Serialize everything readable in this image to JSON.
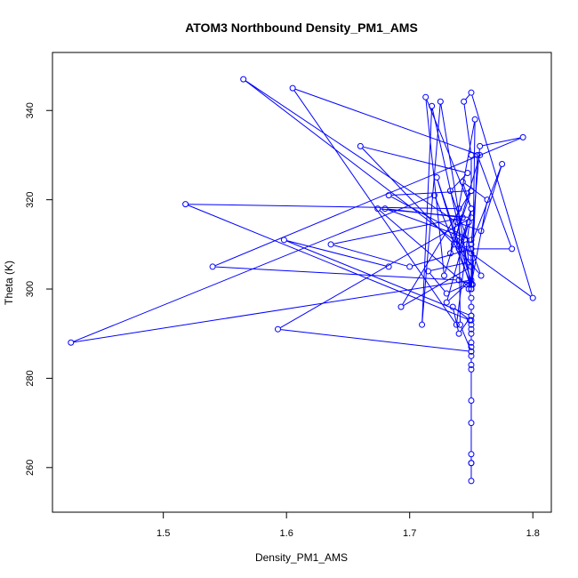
{
  "chart_data": {
    "type": "line",
    "title": "ATOM3 Northbound Density_PM1_AMS",
    "xlabel": "Density_PM1_AMS",
    "ylabel": "Theta (K)",
    "xlim": [
      1.41,
      1.815
    ],
    "ylim": [
      250,
      353
    ],
    "x_ticks": [
      1.5,
      1.6,
      1.7,
      1.8
    ],
    "y_ticks": [
      260,
      280,
      300,
      320,
      340
    ],
    "x_tick_labels": [
      "1.5",
      "1.6",
      "1.7",
      "1.8"
    ],
    "y_tick_labels": [
      "260",
      "280",
      "300",
      "320",
      "340"
    ],
    "marker": "open-circle",
    "grid": false,
    "legend": "none",
    "series_color": "#0000ff",
    "series": [
      {
        "x": [
          1.75,
          1.75,
          1.75,
          1.75,
          1.75,
          1.75,
          1.75,
          1.75,
          1.75,
          1.75,
          1.75,
          1.75,
          1.75,
          1.75,
          1.75,
          1.75,
          1.75,
          1.75,
          1.75,
          1.748,
          1.746,
          1.73,
          1.715,
          1.748,
          1.746,
          1.736,
          1.75,
          1.693,
          1.75,
          1.75,
          1.744,
          1.75,
          1.8,
          1.75,
          1.565,
          1.738,
          1.758,
          1.775,
          1.75,
          1.757,
          1.792,
          1.54,
          1.74,
          1.75,
          1.72,
          1.425,
          1.75,
          1.73,
          1.748,
          1.74,
          1.75,
          1.713,
          1.728,
          1.757,
          1.605,
          1.738,
          1.75,
          1.743,
          1.763,
          1.75,
          1.718,
          1.71,
          1.725,
          1.75,
          1.722,
          1.751,
          1.753,
          1.733,
          1.75,
          1.683,
          1.75,
          1.68,
          1.743,
          1.636,
          1.7,
          1.75,
          1.75,
          1.752,
          1.733,
          1.747,
          1.66,
          1.736,
          1.758,
          1.75,
          1.783,
          1.755,
          1.75,
          1.674,
          1.75,
          1.593,
          1.75,
          1.741,
          1.74,
          1.518,
          1.749,
          1.735,
          1.74,
          1.75,
          1.598,
          1.683
        ],
        "y": [
          257,
          261,
          261,
          263,
          270,
          275,
          282,
          283,
          285,
          286,
          287,
          288,
          290,
          291,
          292,
          293,
          294,
          296,
          298,
          300,
          301,
          299,
          304,
          306,
          310,
          312,
          305,
          296,
          322,
          330,
          342,
          344,
          298,
          308,
          347,
          315,
          313,
          328,
          310,
          332,
          334,
          305,
          302,
          301,
          321,
          288,
          302,
          297,
          315,
          309,
          318,
          343,
          303,
          330,
          345,
          292,
          318,
          324,
          320,
          301,
          341,
          292,
          342,
          300,
          325,
          301,
          338,
          308,
          322,
          321,
          311,
          318,
          316,
          310,
          305,
          309,
          300,
          307,
          322,
          326,
          332,
          310,
          303,
          309,
          309,
          330,
          300,
          318,
          316,
          291,
          286,
          292,
          318,
          319,
          293,
          296,
          290,
          294,
          311,
          305
        ]
      }
    ]
  }
}
